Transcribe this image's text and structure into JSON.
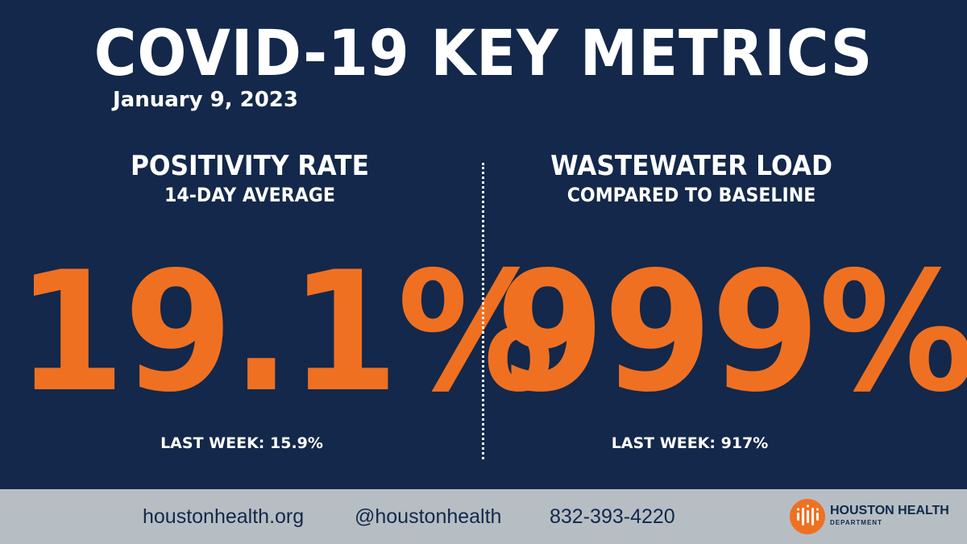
{
  "header": {
    "title": "COVID-19 KEY METRICS",
    "date": "January 9, 2023"
  },
  "metrics": [
    {
      "title": "POSITIVITY RATE",
      "subtitle": "14-DAY AVERAGE",
      "value": "19.1%",
      "last_week": "LAST WEEK: 15.9%"
    },
    {
      "title": "WASTEWATER LOAD",
      "subtitle": "COMPARED TO BASELINE",
      "value": "999%",
      "last_week": "LAST WEEK: 917%"
    }
  ],
  "footer": {
    "website": "houstonhealth.org",
    "social": "@houstonhealth",
    "phone": "832-393-4220",
    "logo_name": "HOUSTON HEALTH",
    "logo_dept": "DEPARTMENT"
  },
  "colors": {
    "background": "#13284a",
    "accent": "#f07021",
    "footer": "#b6bec4",
    "text": "#ffffff"
  }
}
